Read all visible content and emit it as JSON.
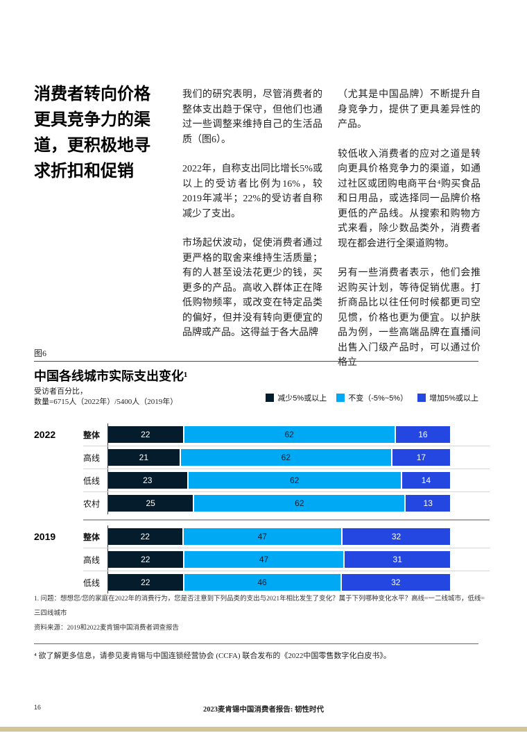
{
  "headline": {
    "lines": [
      "消费者转向价格",
      "更具竞争力的渠",
      "道，更积极地寻",
      "求折扣和促销"
    ]
  },
  "body": {
    "col1_p1": "我们的研究表明，尽管消费者的整体支出趋于保守，但他们也通过一些调整来维持自己的生活品质（图6）。",
    "col1_p2": "2022年，自称支出同比增长5%或以上的受访者比例为16%，较2019年减半；22%的受访者自称减少了支出。",
    "col1_p3": "市场起伏波动，促使消费者通过更严格的取舍来维持生活质量；有的人甚至设法花更少的钱，买更多的产品。高收入群体正在降低购物频率，或改变在特定品类的偏好，但并没有转向更便宜的品牌或产品。这得益于各大品牌",
    "col2_p1": "（尤其是中国品牌）不断提升自身竞争力，提供了更具差异性的产品。",
    "col2_p2": "较低收入消费者的应对之道是转向更具价格竞争力的渠道，如通过社区或团购电商平台⁴购买食品和日用品，或选择同一品牌价格更低的产品线。从搜索和购物方式来看，除少数品类外，消费者现在都会进行全渠道购物。",
    "col2_p3": "另有一些消费者表示，他们会推迟购买计划，等待促销优惠。打折商品比以往任何时候都更司空见惯，价格也更为便宜。以护肤品为例，一些高端品牌在直播间出售入门级产品时，可以通过价格立"
  },
  "chart_data": {
    "type": "bar",
    "figure_label": "图6",
    "title": "中国各线城市实际支出变化¹",
    "subtitle_line1": "受访者百分比，",
    "subtitle_line2": "数量=6715人（2022年）/5400人（2019年）",
    "orientation": "horizontal-stacked",
    "legend": [
      {
        "label": "减少5%或以上",
        "color": "#051c2c",
        "value_text_color": "#ffffff"
      },
      {
        "label": "不变（-5%~5%）",
        "color": "#00a9f4",
        "value_text_color": "#051c2c"
      },
      {
        "label": "增加5%或以上",
        "color": "#2447e1",
        "value_text_color": "#ffffff"
      }
    ],
    "groups": [
      {
        "year": "2022",
        "rows": [
          {
            "label": "整体",
            "bold": true,
            "values": [
              22,
              62,
              16
            ]
          },
          {
            "label": "高线",
            "bold": false,
            "values": [
              21,
              62,
              17
            ]
          },
          {
            "label": "低线",
            "bold": false,
            "values": [
              23,
              62,
              14
            ]
          },
          {
            "label": "农村",
            "bold": false,
            "values": [
              25,
              62,
              13
            ]
          }
        ]
      },
      {
        "year": "2019",
        "rows": [
          {
            "label": "整体",
            "bold": true,
            "values": [
              22,
              47,
              32
            ]
          },
          {
            "label": "高线",
            "bold": false,
            "values": [
              22,
              47,
              31
            ]
          },
          {
            "label": "低线",
            "bold": false,
            "values": [
              22,
              46,
              32
            ]
          }
        ]
      }
    ],
    "xlim": [
      0,
      100
    ],
    "footnote1": "1. 问题：想想您/您的家庭在2022年的消费行为，您是否注意到下列品类的支出与2021年相比发生了变化？属于下列哪种变化水平？高线=一二线城市，低线=三四线城市",
    "source": "资料来源：2019和2022麦肯锡中国消费者调查报告"
  },
  "footnote4": "⁴ 欲了解更多信息，请参见麦肯锡与中国连锁经营协会 (CCFA) 联合发布的《2022中国零售数字化白皮书》。",
  "footer": {
    "page_number": "16",
    "report_title": "2023麦肯锡中国消费者报告: 韧性时代"
  },
  "colors": {
    "bottom_strip": "#d2c59b",
    "decrease": "#051c2c",
    "flat": "#00a9f4",
    "increase": "#2447e1"
  }
}
